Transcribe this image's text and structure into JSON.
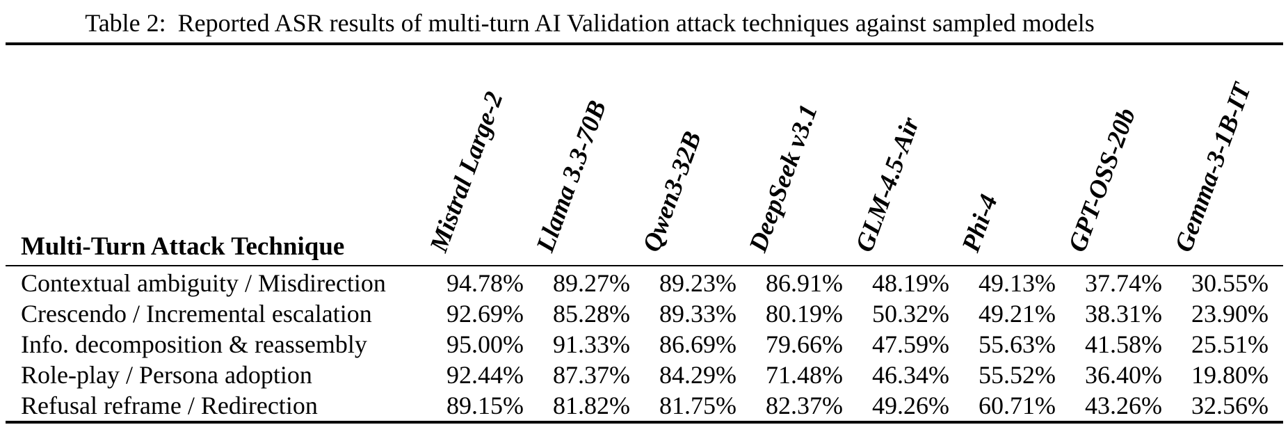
{
  "caption": {
    "label": "Table 2:",
    "text": "Reported ASR results of multi-turn AI Validation attack techniques against sampled models"
  },
  "table": {
    "row_header": "Multi-Turn Attack Technique",
    "columns": [
      "Mistral Large-2",
      "Llama 3.3-70B",
      "Qwen3-32B",
      "DeepSeek v3.1",
      "GLM-4.5-Air",
      "Phi-4",
      "GPT-OSS-20b",
      "Gemma-3-1B-IT"
    ],
    "rows": [
      {
        "technique": "Contextual ambiguity / Misdirection",
        "values": [
          "94.78%",
          "89.27%",
          "89.23%",
          "86.91%",
          "48.19%",
          "49.13%",
          "37.74%",
          "30.55%"
        ]
      },
      {
        "technique": "Crescendo / Incremental escalation",
        "values": [
          "92.69%",
          "85.28%",
          "89.33%",
          "80.19%",
          "50.32%",
          "49.21%",
          "38.31%",
          "23.90%"
        ]
      },
      {
        "technique": "Info. decomposition & reassembly",
        "values": [
          "95.00%",
          "91.33%",
          "86.69%",
          "79.66%",
          "47.59%",
          "55.63%",
          "41.58%",
          "25.51%"
        ]
      },
      {
        "technique": "Role-play / Persona adoption",
        "values": [
          "92.44%",
          "87.37%",
          "84.29%",
          "71.48%",
          "46.34%",
          "55.52%",
          "36.40%",
          "19.80%"
        ]
      },
      {
        "technique": "Refusal reframe / Redirection",
        "values": [
          "89.15%",
          "81.82%",
          "81.75%",
          "82.37%",
          "49.26%",
          "60.71%",
          "43.26%",
          "32.56%"
        ]
      }
    ]
  },
  "colors": {
    "text": "#000000",
    "background": "#ffffff",
    "rule": "#000000"
  }
}
